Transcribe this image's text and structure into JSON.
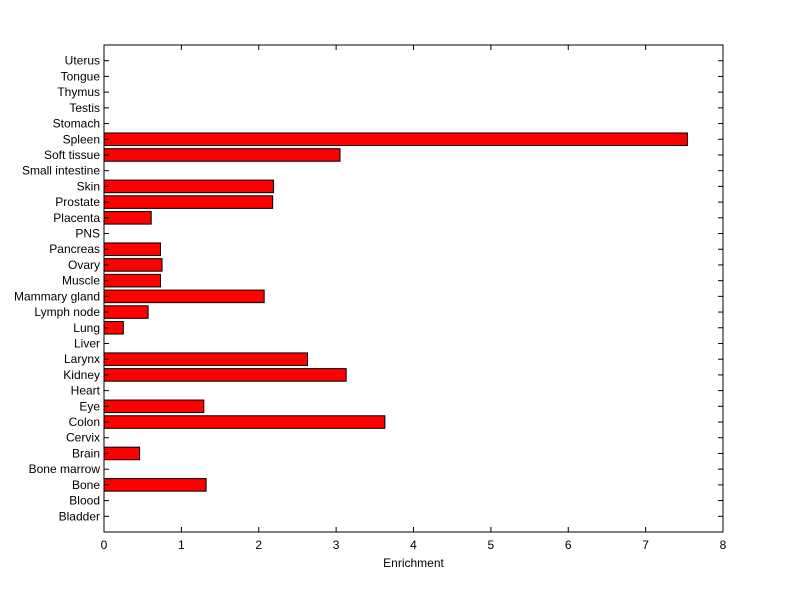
{
  "chart_data": {
    "type": "bar",
    "orientation": "horizontal",
    "title": "",
    "xlabel": "Enrichment",
    "ylabel": "",
    "xlim": [
      0,
      8
    ],
    "xticks": [
      0,
      1,
      2,
      3,
      4,
      5,
      6,
      7,
      8
    ],
    "grid": false,
    "legend": "none",
    "bar_color": "#ff0000",
    "edge_color": "#000000",
    "categories": [
      "Bladder",
      "Blood",
      "Bone",
      "Bone marrow",
      "Brain",
      "Cervix",
      "Colon",
      "Eye",
      "Heart",
      "Kidney",
      "Larynx",
      "Liver",
      "Lung",
      "Lymph node",
      "Mammary gland",
      "Muscle",
      "Ovary",
      "Pancreas",
      "PNS",
      "Placenta",
      "Prostate",
      "Skin",
      "Small intestine",
      "Soft tissue",
      "Spleen",
      "Stomach",
      "Testis",
      "Thymus",
      "Tongue",
      "Uterus"
    ],
    "values": [
      0,
      0,
      1.32,
      0,
      0.46,
      0,
      3.63,
      1.29,
      0,
      3.13,
      2.63,
      0,
      0.25,
      0.57,
      2.07,
      0.73,
      0.75,
      0.73,
      0,
      0.61,
      2.18,
      2.19,
      0,
      3.05,
      7.54,
      0,
      0,
      0,
      0,
      0
    ]
  }
}
